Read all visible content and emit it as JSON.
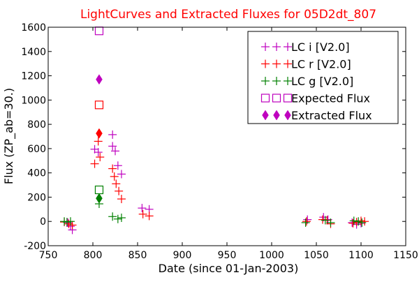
{
  "chart_data": {
    "type": "scatter",
    "title": "LightCurves and Extracted Fluxes for 05D2dt_807",
    "xlabel": "Date (since 01-Jan-2003)",
    "ylabel": "Flux (ZP_ab=30.)",
    "xlim": [
      750,
      1150
    ],
    "ylim": [
      -200,
      1600
    ],
    "x_ticks": [
      750,
      800,
      850,
      900,
      950,
      1000,
      1050,
      1100,
      1150
    ],
    "y_ticks": [
      -200,
      0,
      200,
      400,
      600,
      800,
      1000,
      1200,
      1400,
      1600
    ],
    "grid": false,
    "legend_position": "top-right",
    "colors": {
      "title": "#ff0000",
      "i": "#bf00bf",
      "r": "#ff0000",
      "g": "#008000"
    },
    "series": [
      {
        "name": "LC i [V2.0]",
        "band": "i",
        "marker": "plus",
        "color": "#bf00bf",
        "points": [
          [
            772,
            -10
          ],
          [
            775,
            -40
          ],
          [
            777,
            -70
          ],
          [
            802,
            595
          ],
          [
            806,
            570
          ],
          [
            822,
            715
          ],
          [
            822,
            620
          ],
          [
            825,
            580
          ],
          [
            828,
            460
          ],
          [
            832,
            390
          ],
          [
            855,
            110
          ],
          [
            863,
            100
          ],
          [
            1040,
            15
          ],
          [
            1058,
            35
          ],
          [
            1063,
            15
          ],
          [
            1090,
            -10
          ],
          [
            1095,
            -25
          ],
          [
            1100,
            -15
          ]
        ]
      },
      {
        "name": "LC r [V2.0]",
        "band": "r",
        "marker": "plus",
        "color": "#ff0000",
        "points": [
          [
            768,
            -5
          ],
          [
            773,
            -20
          ],
          [
            777,
            -30
          ],
          [
            802,
            475
          ],
          [
            806,
            660
          ],
          [
            808,
            530
          ],
          [
            822,
            435
          ],
          [
            824,
            370
          ],
          [
            826,
            310
          ],
          [
            829,
            250
          ],
          [
            832,
            185
          ],
          [
            856,
            60
          ],
          [
            863,
            45
          ],
          [
            1039,
            0
          ],
          [
            1057,
            15
          ],
          [
            1062,
            10
          ],
          [
            1066,
            -20
          ],
          [
            1091,
            -15
          ],
          [
            1095,
            -5
          ],
          [
            1100,
            5
          ],
          [
            1104,
            0
          ]
        ]
      },
      {
        "name": "LC g [V2.0]",
        "band": "g",
        "marker": "plus",
        "color": "#008000",
        "points": [
          [
            768,
            0
          ],
          [
            771,
            -5
          ],
          [
            775,
            0
          ],
          [
            807,
            145
          ],
          [
            822,
            40
          ],
          [
            828,
            20
          ],
          [
            832,
            30
          ],
          [
            1038,
            -10
          ],
          [
            1060,
            10
          ],
          [
            1066,
            -10
          ],
          [
            1092,
            5
          ],
          [
            1097,
            0
          ],
          [
            1101,
            -10
          ]
        ]
      },
      {
        "name": "Expected Flux",
        "marker": "square",
        "points": [
          {
            "x": 807,
            "y": 1570,
            "band": "i",
            "color": "#bf00bf"
          },
          {
            "x": 807,
            "y": 960,
            "band": "r",
            "color": "#ff0000"
          },
          {
            "x": 807,
            "y": 260,
            "band": "g",
            "color": "#008000"
          }
        ]
      },
      {
        "name": "Extracted Flux",
        "marker": "diamond",
        "points": [
          {
            "x": 807,
            "y": 1170,
            "band": "i",
            "color": "#bf00bf"
          },
          {
            "x": 807,
            "y": 725,
            "band": "r",
            "color": "#ff0000"
          },
          {
            "x": 807,
            "y": 190,
            "band": "g",
            "color": "#008000"
          }
        ]
      }
    ],
    "legend": [
      {
        "label": "LC i [V2.0]",
        "marker": "plus",
        "color": "#bf00bf"
      },
      {
        "label": "LC r [V2.0]",
        "marker": "plus",
        "color": "#ff0000"
      },
      {
        "label": "LC g [V2.0]",
        "marker": "plus",
        "color": "#008000"
      },
      {
        "label": "Expected Flux",
        "marker": "square",
        "color": "#bf00bf"
      },
      {
        "label": "Extracted Flux",
        "marker": "diamond",
        "color": "#bf00bf"
      }
    ]
  }
}
